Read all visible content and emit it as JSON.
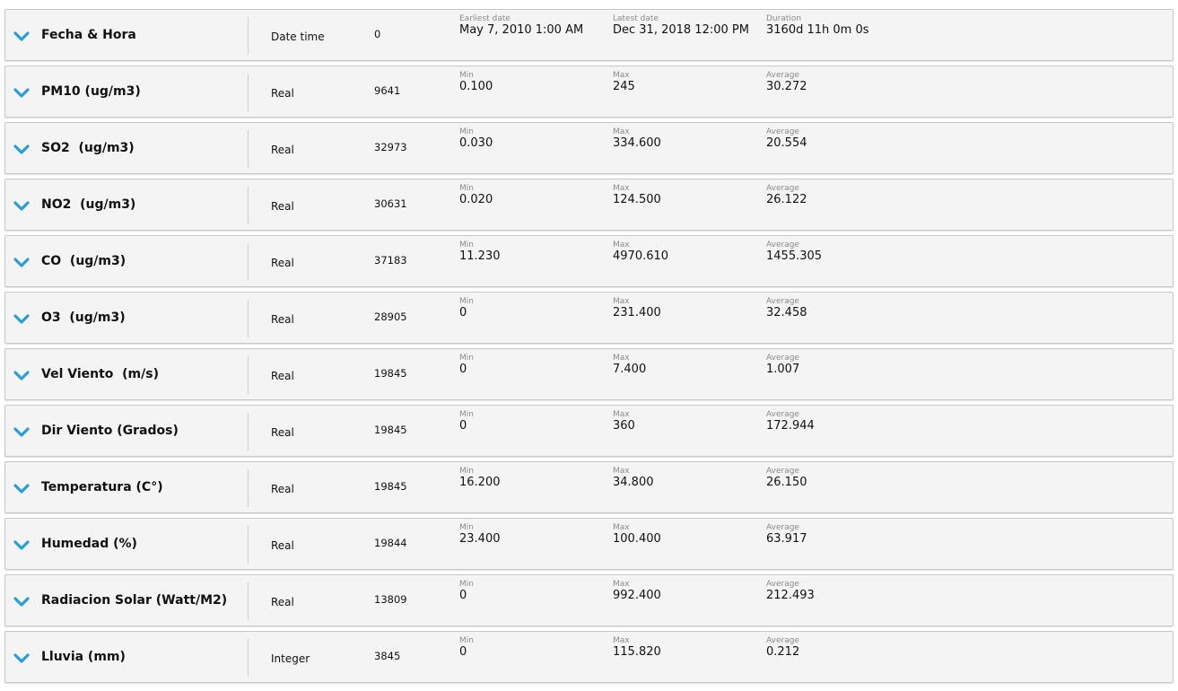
{
  "colors": {
    "chevron": "#2a9fd6",
    "row_bg": "#f4f4f4",
    "row_border": "#c8c8c8",
    "label_gray": "#8a8a8a"
  },
  "icons": {
    "expand": "chevron-down-icon"
  },
  "columns": [
    {
      "name": "Fecha & Hora",
      "type": "Date time",
      "count": "0",
      "stats": [
        {
          "label": "Earliest date",
          "value": "May 7, 2010 1:00 AM"
        },
        {
          "label": "Latest date",
          "value": "Dec 31, 2018 12:00 PM"
        },
        {
          "label": "Duration",
          "value": "3160d 11h 0m 0s"
        }
      ]
    },
    {
      "name": "PM10 (ug/m3)",
      "type": "Real",
      "count": "9641",
      "stats": [
        {
          "label": "Min",
          "value": "0.100"
        },
        {
          "label": "Max",
          "value": "245"
        },
        {
          "label": "Average",
          "value": "30.272"
        }
      ]
    },
    {
      "name": "SO2  (ug/m3)",
      "type": "Real",
      "count": "32973",
      "stats": [
        {
          "label": "Min",
          "value": "0.030"
        },
        {
          "label": "Max",
          "value": "334.600"
        },
        {
          "label": "Average",
          "value": "20.554"
        }
      ]
    },
    {
      "name": "NO2  (ug/m3)",
      "type": "Real",
      "count": "30631",
      "stats": [
        {
          "label": "Min",
          "value": "0.020"
        },
        {
          "label": "Max",
          "value": "124.500"
        },
        {
          "label": "Average",
          "value": "26.122"
        }
      ]
    },
    {
      "name": "CO  (ug/m3)",
      "type": "Real",
      "count": "37183",
      "stats": [
        {
          "label": "Min",
          "value": "11.230"
        },
        {
          "label": "Max",
          "value": "4970.610"
        },
        {
          "label": "Average",
          "value": "1455.305"
        }
      ]
    },
    {
      "name": "O3  (ug/m3)",
      "type": "Real",
      "count": "28905",
      "stats": [
        {
          "label": "Min",
          "value": "0"
        },
        {
          "label": "Max",
          "value": "231.400"
        },
        {
          "label": "Average",
          "value": "32.458"
        }
      ]
    },
    {
      "name": "Vel Viento  (m/s)",
      "type": "Real",
      "count": "19845",
      "stats": [
        {
          "label": "Min",
          "value": "0"
        },
        {
          "label": "Max",
          "value": "7.400"
        },
        {
          "label": "Average",
          "value": "1.007"
        }
      ]
    },
    {
      "name": "Dir Viento (Grados)",
      "type": "Real",
      "count": "19845",
      "stats": [
        {
          "label": "Min",
          "value": "0"
        },
        {
          "label": "Max",
          "value": "360"
        },
        {
          "label": "Average",
          "value": "172.944"
        }
      ]
    },
    {
      "name": "Temperatura (C°)",
      "type": "Real",
      "count": "19845",
      "stats": [
        {
          "label": "Min",
          "value": "16.200"
        },
        {
          "label": "Max",
          "value": "34.800"
        },
        {
          "label": "Average",
          "value": "26.150"
        }
      ]
    },
    {
      "name": "Humedad (%)",
      "type": "Real",
      "count": "19844",
      "stats": [
        {
          "label": "Min",
          "value": "23.400"
        },
        {
          "label": "Max",
          "value": "100.400"
        },
        {
          "label": "Average",
          "value": "63.917"
        }
      ]
    },
    {
      "name": "Radiacion Solar (Watt/M2)",
      "type": "Real",
      "count": "13809",
      "stats": [
        {
          "label": "Min",
          "value": "0"
        },
        {
          "label": "Max",
          "value": "992.400"
        },
        {
          "label": "Average",
          "value": "212.493"
        }
      ]
    },
    {
      "name": "Lluvia (mm)",
      "type": "Integer",
      "count": "3845",
      "stats": [
        {
          "label": "Min",
          "value": "0"
        },
        {
          "label": "Max",
          "value": "115.820"
        },
        {
          "label": "Average",
          "value": "0.212"
        }
      ]
    }
  ]
}
